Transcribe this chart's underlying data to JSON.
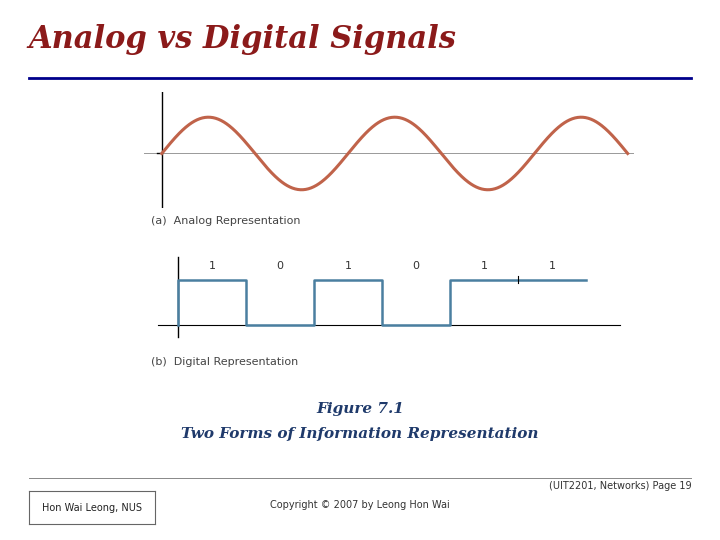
{
  "title": "Analog vs Digital Signals",
  "title_color": "#8B1A1A",
  "title_fontsize": 22,
  "title_bold": true,
  "separator_color": "#00008B",
  "separator_linewidth": 2.0,
  "analog_color": "#C0634A",
  "analog_linewidth": 2.2,
  "digital_color": "#4A7FA0",
  "digital_linewidth": 1.8,
  "axis_color": "#000000",
  "axis_linewidth": 0.8,
  "label_a": "(a)  Analog Representation",
  "label_b": "(b)  Digital Representation",
  "label_fontsize": 8,
  "figure_caption_line1": "Figure 7.1",
  "figure_caption_line2": "Two Forms of Information Representation",
  "caption_color": "#1F3A6B",
  "caption_fontsize": 11,
  "caption_bold": true,
  "footer_left": "Hon Wai Leong, NUS",
  "footer_center": "Copyright © 2007 by Leong Hon Wai",
  "footer_right": "(UIT2201, Networks) Page 19",
  "footer_fontsize": 7,
  "digital_bits": [
    "1",
    "0",
    "1",
    "0",
    "1",
    "1"
  ],
  "digital_bit_fontsize": 8,
  "background_color": "#FFFFFF"
}
